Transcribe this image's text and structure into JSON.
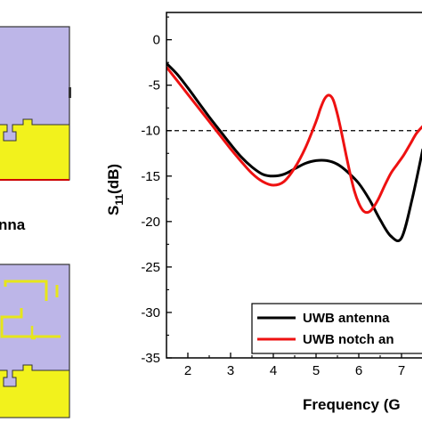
{
  "left_panels": {
    "caption": "nna",
    "colors": {
      "substrate": "#bdb6e8",
      "ground": "#f2f21c",
      "edge": "#333333",
      "strip": "#e6e61a"
    }
  },
  "chart_data": {
    "type": "line",
    "xlabel": "Frequency (G",
    "ylabel_main": "S",
    "ylabel_sub": "11",
    "ylabel_suffix": "(dB)",
    "xlim": [
      1.5,
      7.5
    ],
    "ylim": [
      -35,
      3
    ],
    "xticks": [
      2,
      3,
      4,
      5,
      6,
      7
    ],
    "yticks": [
      0,
      -5,
      -10,
      -15,
      -20,
      -25,
      -30,
      -35
    ],
    "grid": false,
    "reference_line": {
      "y": -10,
      "style": "dashed"
    },
    "legend": {
      "placement": "bottom-right",
      "entries": [
        "UWB antenna",
        "UWB notch an"
      ]
    },
    "series": [
      {
        "name": "UWB antenna",
        "color": "#000000",
        "x": [
          1.5,
          1.75,
          2.0,
          2.25,
          2.5,
          2.75,
          3.0,
          3.25,
          3.5,
          3.75,
          4.0,
          4.25,
          4.5,
          4.75,
          5.0,
          5.25,
          5.5,
          5.75,
          6.0,
          6.25,
          6.5,
          6.75,
          7.0,
          7.25,
          7.5
        ],
        "values": [
          -2.6,
          -3.8,
          -5.3,
          -6.9,
          -8.5,
          -10.0,
          -11.5,
          -12.9,
          -14.0,
          -14.8,
          -15.0,
          -14.8,
          -14.2,
          -13.6,
          -13.3,
          -13.3,
          -13.7,
          -14.6,
          -15.8,
          -17.6,
          -19.8,
          -21.6,
          -21.8,
          -17.5,
          -12.0
        ]
      },
      {
        "name": "UWB notch an",
        "color": "#ee1111",
        "x": [
          1.5,
          1.75,
          2.0,
          2.25,
          2.5,
          2.75,
          3.0,
          3.25,
          3.5,
          3.75,
          4.0,
          4.25,
          4.5,
          4.75,
          5.0,
          5.1,
          5.2,
          5.3,
          5.4,
          5.5,
          5.6,
          5.7,
          5.8,
          5.9,
          6.0,
          6.1,
          6.2,
          6.3,
          6.45,
          6.6,
          6.75,
          6.9,
          7.05,
          7.2,
          7.35,
          7.5
        ],
        "values": [
          -3.0,
          -4.5,
          -6.0,
          -7.5,
          -9.0,
          -10.5,
          -12.0,
          -13.4,
          -14.7,
          -15.6,
          -16.0,
          -15.6,
          -14.1,
          -11.9,
          -9.0,
          -7.6,
          -6.5,
          -6.1,
          -6.6,
          -8.2,
          -10.3,
          -12.6,
          -14.8,
          -16.7,
          -18.0,
          -18.8,
          -19.0,
          -18.7,
          -17.6,
          -16.1,
          -14.7,
          -13.7,
          -12.7,
          -11.5,
          -10.3,
          -9.5
        ]
      }
    ]
  }
}
